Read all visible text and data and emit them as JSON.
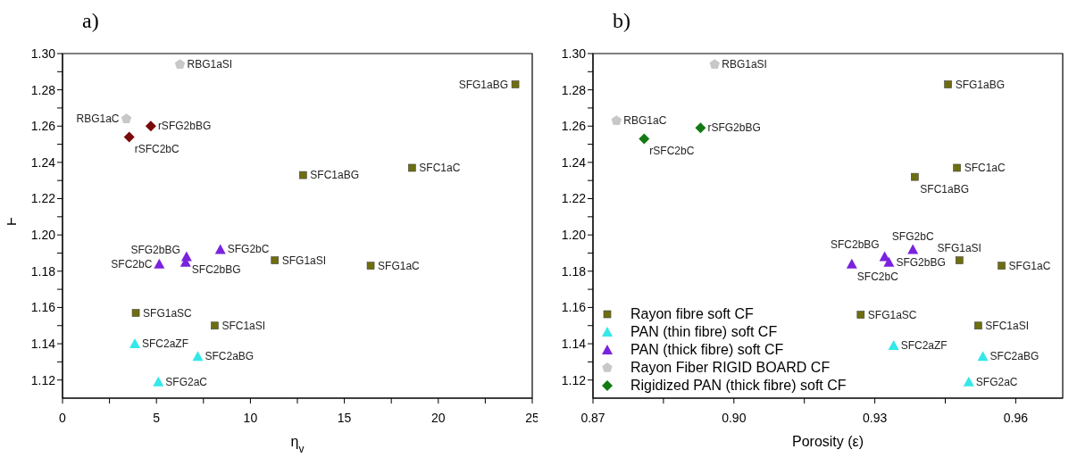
{
  "chart_data": [
    {
      "type": "scatter",
      "title": "a)",
      "xlabel": "η$_{v}$",
      "ylabel": "F",
      "xlim": [
        0,
        25
      ],
      "xticks": [
        0,
        {
          "value": 2.5,
          "label": null
        },
        5,
        {
          "value": 7.5,
          "label": null
        },
        10,
        {
          "value": 12.5,
          "label": null
        },
        15,
        {
          "value": 17.5,
          "label": null
        },
        20,
        {
          "value": 22.5,
          "label": null
        },
        25
      ],
      "ylim": [
        1.11,
        1.3
      ],
      "yticks": [
        {
          "value": 1.12,
          "label": "1.12"
        },
        {
          "value": 1.13,
          "label": null
        },
        {
          "value": 1.14,
          "label": "1.14"
        },
        {
          "value": 1.15,
          "label": null
        },
        {
          "value": 1.16,
          "label": "1.16"
        },
        {
          "value": 1.17,
          "label": null
        },
        {
          "value": 1.18,
          "label": "1.18"
        },
        {
          "value": 1.19,
          "label": null
        },
        {
          "value": 1.2,
          "label": "1.20"
        },
        {
          "value": 1.21,
          "label": null
        },
        {
          "value": 1.22,
          "label": "1.22"
        },
        {
          "value": 1.23,
          "label": null
        },
        {
          "value": 1.24,
          "label": "1.24"
        },
        {
          "value": 1.25,
          "label": null
        },
        {
          "value": 1.26,
          "label": "1.26"
        },
        {
          "value": 1.27,
          "label": null
        },
        {
          "value": 1.28,
          "label": "1.28"
        },
        {
          "value": 1.29,
          "label": null
        },
        {
          "value": 1.3,
          "label": "1.30"
        }
      ],
      "legend": false,
      "series": [
        {
          "color": "#6e6e10",
          "marker": "square",
          "x": [
            24.1,
            12.8,
            18.6,
            11.3,
            16.4,
            3.9,
            8.1
          ],
          "values": [
            1.283,
            1.233,
            1.237,
            1.186,
            1.183,
            1.157,
            1.15
          ]
        },
        {
          "color": "#33e8e8",
          "marker": "triangle",
          "x": [
            3.85,
            7.2,
            5.1
          ],
          "values": [
            1.14,
            1.133,
            1.119
          ]
        },
        {
          "color": "#7a22dd",
          "marker": "triangle",
          "x": [
            8.4,
            6.6,
            6.55,
            5.15
          ],
          "values": [
            1.192,
            1.188,
            1.185,
            1.184
          ]
        },
        {
          "color": "#c8c8c8",
          "x": [
            6.25,
            3.4
          ],
          "values": [
            1.294,
            1.264
          ]
        },
        {
          "color": "#7a0a0a",
          "marker": "diamond",
          "x": [
            4.7,
            3.55
          ],
          "values": [
            1.26,
            1.254
          ]
        }
      ],
      "annotations": [
        {
          "text": "SFG1aBG",
          "x": 24.1,
          "y": 1.283
        },
        {
          "text": "SFC1aBG",
          "x": 12.8,
          "y": 1.233
        },
        {
          "text": "SFC1aC",
          "x": 18.6,
          "y": 1.237
        },
        {
          "text": "SFG1aSI",
          "x": 11.3,
          "y": 1.186
        },
        {
          "text": "SFG1aC",
          "x": 16.4,
          "y": 1.183
        },
        {
          "text": "SFG1aSC",
          "x": 3.9,
          "y": 1.157
        },
        {
          "text": "SFC1aSI",
          "x": 8.1,
          "y": 1.15
        },
        {
          "text": "SFC2aZF",
          "x": 3.85,
          "y": 1.14
        },
        {
          "text": "SFC2aBG",
          "x": 7.2,
          "y": 1.133
        },
        {
          "text": "SFG2aC",
          "x": 5.1,
          "y": 1.119
        },
        {
          "text": "SFG2bC",
          "x": 8.4,
          "y": 1.192
        },
        {
          "text": "SFC2bBG",
          "x": 6.6,
          "y": 1.188
        },
        {
          "text": "SFG2bBG",
          "x": 6.55,
          "y": 1.185
        },
        {
          "text": "SFC2bC",
          "x": 5.15,
          "y": 1.184
        },
        {
          "text": "RBG1aSI",
          "x": 6.25,
          "y": 1.294
        },
        {
          "text": "RBG1aC",
          "x": 3.4,
          "y": 1.264
        },
        {
          "text": "rSFG2bBG",
          "x": 4.7,
          "y": 1.26
        },
        {
          "text": "rSFC2bC",
          "x": 3.55,
          "y": 1.254
        }
      ]
    },
    {
      "type": "scatter",
      "title": "b)",
      "xlabel": "Porosity (ε)",
      "xlim": [
        0.87,
        0.97
      ],
      "xticks": [
        0.87,
        {
          "value": 0.885,
          "label": null
        },
        {
          "value": 0.9,
          "label": "0.90"
        },
        {
          "value": 0.915,
          "label": null
        },
        0.93,
        {
          "value": 0.945,
          "label": null
        },
        0.96
      ],
      "ylim": [
        1.11,
        1.3
      ],
      "yticks": [
        {
          "value": 1.12,
          "label": "1.12"
        },
        {
          "value": 1.13,
          "label": null
        },
        {
          "value": 1.14,
          "label": "1.14"
        },
        {
          "value": 1.15,
          "label": null
        },
        {
          "value": 1.16,
          "label": "1.16"
        },
        {
          "value": 1.17,
          "label": null
        },
        {
          "value": 1.18,
          "label": "1.18"
        },
        {
          "value": 1.19,
          "label": null
        },
        {
          "value": 1.2,
          "label": "1.20"
        },
        {
          "value": 1.21,
          "label": null
        },
        {
          "value": 1.22,
          "label": "1.22"
        },
        {
          "value": 1.23,
          "label": null
        },
        {
          "value": 1.24,
          "label": "1.24"
        },
        {
          "value": 1.25,
          "label": null
        },
        {
          "value": 1.26,
          "label": "1.26"
        },
        {
          "value": 1.27,
          "label": null
        },
        {
          "value": 1.28,
          "label": "1.28"
        },
        {
          "value": 1.29,
          "label": null
        },
        {
          "value": 1.3,
          "label": "1.30"
        }
      ],
      "legend": "bottom left",
      "series": [
        {
          "name": "Rayon fibre soft CF",
          "color": "#6e6e10",
          "marker": "square",
          "x": [
            0.9456,
            0.9385,
            0.9475,
            0.948,
            0.957,
            0.927,
            0.952
          ],
          "values": [
            1.283,
            1.232,
            1.237,
            1.186,
            1.183,
            1.156,
            1.15
          ]
        },
        {
          "name": "PAN (thin fibre) soft CF",
          "color": "#33e8e8",
          "marker": "triangle",
          "x": [
            0.934,
            0.953,
            0.95
          ],
          "values": [
            1.139,
            1.133,
            1.119
          ]
        },
        {
          "name": "PAN (thick fibre) soft CF",
          "color": "#7a22dd",
          "marker": "triangle",
          "x": [
            0.9381,
            0.9321,
            0.933,
            0.9251
          ],
          "values": [
            1.192,
            1.188,
            1.185,
            1.184
          ]
        },
        {
          "name": "Rayon Fiber RIGID BOARD CF",
          "color": "#c8c8c8",
          "x": [
            0.8959,
            0.875
          ],
          "values": [
            1.294,
            1.263
          ]
        },
        {
          "name": "Rigidized PAN (thick fibre) soft CF",
          "color": "#137a13",
          "marker": "diamond",
          "x": [
            0.8929,
            0.8809
          ],
          "values": [
            1.259,
            1.253
          ]
        }
      ],
      "annotations": [
        {
          "text": "SFG1aBG",
          "x": 0.9456,
          "y": 1.283
        },
        {
          "text": "SFC1aBG",
          "x": 0.9385,
          "y": 1.232
        },
        {
          "text": "SFC1aC",
          "x": 0.9475,
          "y": 1.237
        },
        {
          "text": "SFG1aSI",
          "x": 0.948,
          "y": 1.186
        },
        {
          "text": "SFG1aC",
          "x": 0.957,
          "y": 1.183
        },
        {
          "text": "SFG1aSC",
          "x": 0.927,
          "y": 1.156
        },
        {
          "text": "SFC1aSI",
          "x": 0.952,
          "y": 1.15
        },
        {
          "text": "SFC2aZF",
          "x": 0.934,
          "y": 1.139
        },
        {
          "text": "SFC2aBG",
          "x": 0.953,
          "y": 1.133
        },
        {
          "text": "SFG2aC",
          "x": 0.95,
          "y": 1.119
        },
        {
          "text": "SFG2bC",
          "x": 0.9381,
          "y": 1.192
        },
        {
          "text": "SFC2bBG",
          "x": 0.9321,
          "y": 1.188
        },
        {
          "text": "SFG2bBG",
          "x": 0.933,
          "y": 1.185
        },
        {
          "text": "SFC2bC",
          "x": 0.9251,
          "y": 1.184
        },
        {
          "text": "RBG1aSI",
          "x": 0.8959,
          "y": 1.294
        },
        {
          "text": "RBG1aC",
          "x": 0.875,
          "y": 1.263
        },
        {
          "text": "rSFG2bBG",
          "x": 0.8929,
          "y": 1.259
        },
        {
          "text": "rSFC2bC",
          "x": 0.8809,
          "y": 1.253
        }
      ]
    }
  ]
}
